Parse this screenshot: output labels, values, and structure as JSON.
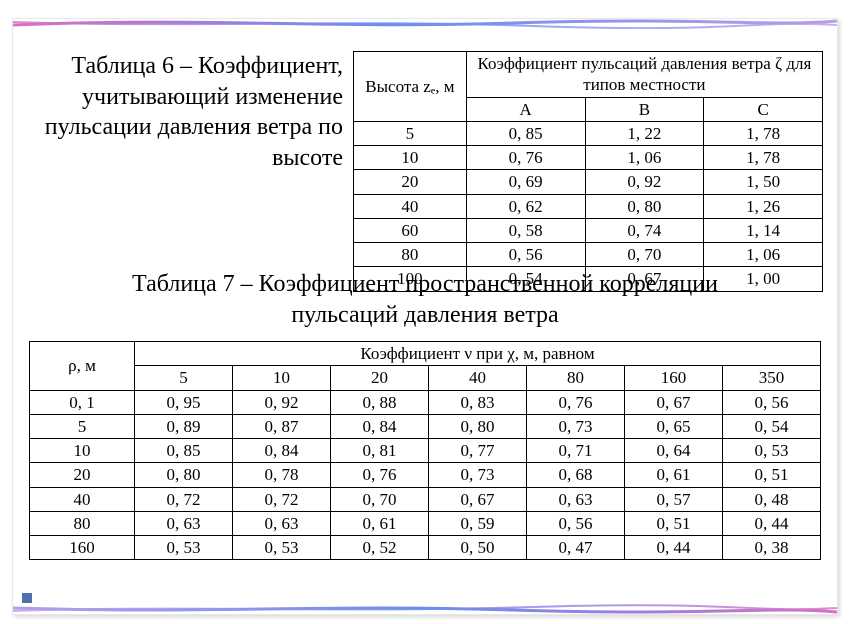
{
  "frame": {
    "stripe_colors": {
      "pink": "#d86fc4",
      "blue": "#6a8ef0",
      "lilac": "#b99de6"
    },
    "corner_color": "#4f6fae"
  },
  "table6": {
    "title": "Таблица 6 – Коэффициент, учитывающий изменение пульсации давления ветра по высоте",
    "col_height": "Высота zₑ, м",
    "group_header": "Коэффициент пульсаций давления ветра ζ для типов местности",
    "sub_headers": [
      "A",
      "B",
      "C"
    ],
    "rows": [
      [
        "5",
        "0, 85",
        "1, 22",
        "1, 78"
      ],
      [
        "10",
        "0, 76",
        "1, 06",
        "1, 78"
      ],
      [
        "20",
        "0, 69",
        "0, 92",
        "1, 50"
      ],
      [
        "40",
        "0, 62",
        "0, 80",
        "1, 26"
      ],
      [
        "60",
        "0, 58",
        "0, 74",
        "1, 14"
      ],
      [
        "80",
        "0, 56",
        "0, 70",
        "1, 06"
      ],
      [
        "100",
        "0, 54",
        "0, 67",
        "1, 00"
      ]
    ]
  },
  "table7": {
    "title_line1": "Таблица 7 – Коэффициент пространственной корреляции",
    "title_line2": "пульсаций давления ветра",
    "row_header": "ρ, м",
    "group_header": "Коэффициент ν при χ, м, равном",
    "col_headers": [
      "5",
      "10",
      "20",
      "40",
      "80",
      "160",
      "350"
    ],
    "rows": [
      [
        "0, 1",
        "0, 95",
        "0, 92",
        "0, 88",
        "0, 83",
        "0, 76",
        "0, 67",
        "0, 56"
      ],
      [
        "5",
        "0, 89",
        "0, 87",
        "0, 84",
        "0, 80",
        "0, 73",
        "0, 65",
        "0, 54"
      ],
      [
        "10",
        "0, 85",
        "0, 84",
        "0, 81",
        "0, 77",
        "0, 71",
        "0, 64",
        "0, 53"
      ],
      [
        "20",
        "0, 80",
        "0, 78",
        "0, 76",
        "0, 73",
        "0, 68",
        "0, 61",
        "0, 51"
      ],
      [
        "40",
        "0, 72",
        "0, 72",
        "0, 70",
        "0, 67",
        "0, 63",
        "0, 57",
        "0, 48"
      ],
      [
        "80",
        "0, 63",
        "0, 63",
        "0, 61",
        "0, 59",
        "0, 56",
        "0, 51",
        "0, 44"
      ],
      [
        "160",
        "0, 53",
        "0, 53",
        "0, 52",
        "0, 50",
        "0, 47",
        "0, 44",
        "0, 38"
      ]
    ]
  }
}
